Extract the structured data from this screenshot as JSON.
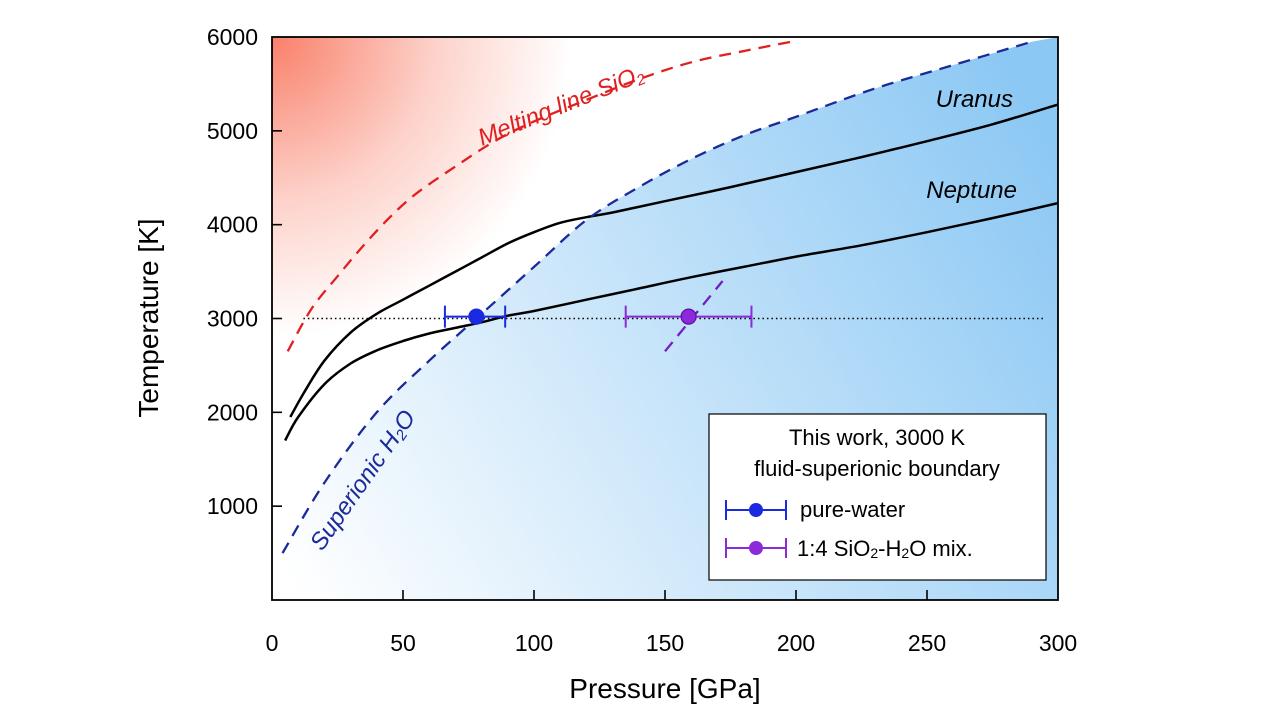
{
  "chart_data": {
    "type": "line",
    "xlabel": "Pressure [GPa]",
    "ylabel": "Temperature [K]",
    "xlim": [
      0,
      300
    ],
    "ylim": [
      0,
      6000
    ],
    "xticks": [
      0,
      50,
      100,
      150,
      200,
      250,
      300
    ],
    "yticks": [
      1000,
      2000,
      3000,
      4000,
      5000,
      6000
    ],
    "grid": false,
    "series": [
      {
        "name": "Uranus",
        "style": "solid",
        "color": "#000000",
        "x": [
          7,
          12,
          20,
          30,
          40,
          50,
          60,
          70,
          80,
          90,
          100,
          110,
          120,
          130,
          150,
          175,
          200,
          225,
          250,
          275,
          300
        ],
        "y": [
          1950,
          2200,
          2550,
          2850,
          3050,
          3200,
          3350,
          3500,
          3650,
          3800,
          3920,
          4020,
          4080,
          4130,
          4250,
          4400,
          4560,
          4720,
          4890,
          5070,
          5280
        ]
      },
      {
        "name": "Neptune",
        "style": "solid",
        "color": "#000000",
        "x": [
          5,
          10,
          20,
          30,
          40,
          50,
          60,
          70,
          80,
          90,
          100,
          120,
          140,
          160,
          180,
          200,
          225,
          250,
          275,
          300
        ],
        "y": [
          1700,
          1950,
          2300,
          2520,
          2660,
          2760,
          2840,
          2900,
          2960,
          3030,
          3080,
          3200,
          3320,
          3440,
          3550,
          3660,
          3780,
          3920,
          4070,
          4230
        ]
      },
      {
        "name": "Melting line SiO2",
        "style": "dashed",
        "color": "#e02020",
        "x": [
          6,
          15,
          25,
          35,
          45,
          55,
          70,
          85,
          100,
          120,
          140,
          160,
          180,
          200
        ],
        "y": [
          2650,
          3100,
          3450,
          3780,
          4080,
          4330,
          4620,
          4890,
          5100,
          5330,
          5550,
          5730,
          5850,
          5960
        ]
      },
      {
        "name": "Superionic H2O",
        "style": "dashed",
        "color": "#1a2a9a",
        "x": [
          4,
          20,
          40,
          60,
          80,
          100,
          120,
          140,
          160,
          180,
          200,
          230,
          260,
          290
        ],
        "y": [
          500,
          1250,
          2000,
          2550,
          3050,
          3550,
          4050,
          4400,
          4700,
          4950,
          5150,
          5450,
          5700,
          5950
        ]
      },
      {
        "name": "1:4 SiO2-H2O boundary",
        "style": "dashed",
        "color": "#7020c0",
        "x": [
          150,
          172
        ],
        "y": [
          2650,
          3400
        ]
      }
    ],
    "reference_line": {
      "y": 3000,
      "xmin": 12,
      "xmax": 295,
      "style": "dotted",
      "color": "#000000"
    },
    "points": [
      {
        "label": "pure-water",
        "x": 78,
        "y": 3020,
        "xerr": [
          12,
          11
        ],
        "color": "#1a2ae0"
      },
      {
        "label": "1:4 SiO2-H2O mix.",
        "x": 159,
        "y": 3020,
        "xerr": [
          24,
          24
        ],
        "color": "#8a2ad8",
        "edge": "#5a10a0"
      }
    ],
    "annotations": [
      {
        "text": "Uranus",
        "color": "#000000"
      },
      {
        "text": "Neptune",
        "color": "#000000"
      },
      {
        "text_main": "Melting line SiO",
        "text_sub": "2",
        "color": "#e02020"
      },
      {
        "text_main": "Superionic H",
        "text_sub": "2",
        "text_tail": "O",
        "color": "#1a2a9a"
      }
    ],
    "legend": {
      "placement": "bottom-right",
      "title_line1": "This work, 3000 K",
      "title_line2": "fluid-superionic boundary",
      "entries": [
        {
          "label": "pure-water",
          "color": "#1a2ae0"
        },
        {
          "label_parts": [
            "1:4 SiO",
            "2",
            "-H",
            "2",
            "O mix."
          ],
          "color": "#8a2ad8"
        }
      ]
    },
    "background_gradients": {
      "melting_region_color": "#f9806a",
      "superionic_region_color": "#8cc8f4"
    }
  }
}
